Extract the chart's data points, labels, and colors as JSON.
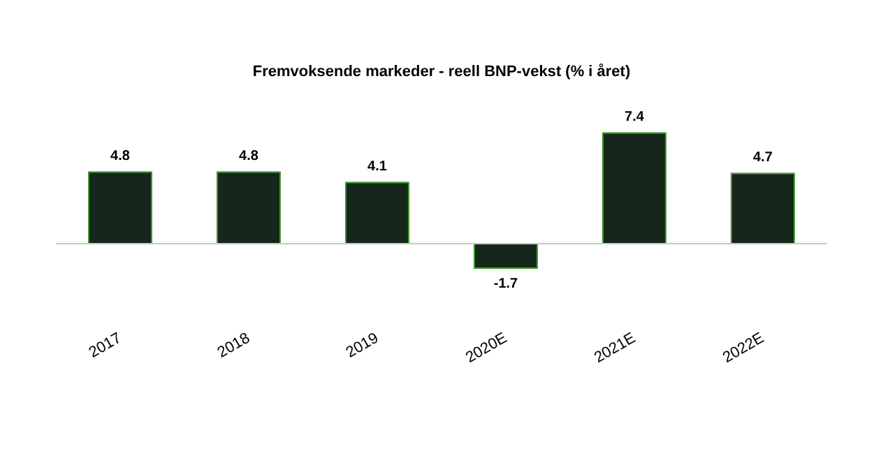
{
  "chart_data": {
    "type": "bar",
    "title": "Fremvoksende markeder - reell BNP-vekst (% i året)",
    "categories": [
      "2017",
      "2018",
      "2019",
      "2020E",
      "2021E",
      "2022E"
    ],
    "values": [
      4.8,
      4.8,
      4.1,
      -1.7,
      7.4,
      4.7
    ],
    "color": "#17261a",
    "data_labels": true,
    "grid": false,
    "legend": false
  }
}
